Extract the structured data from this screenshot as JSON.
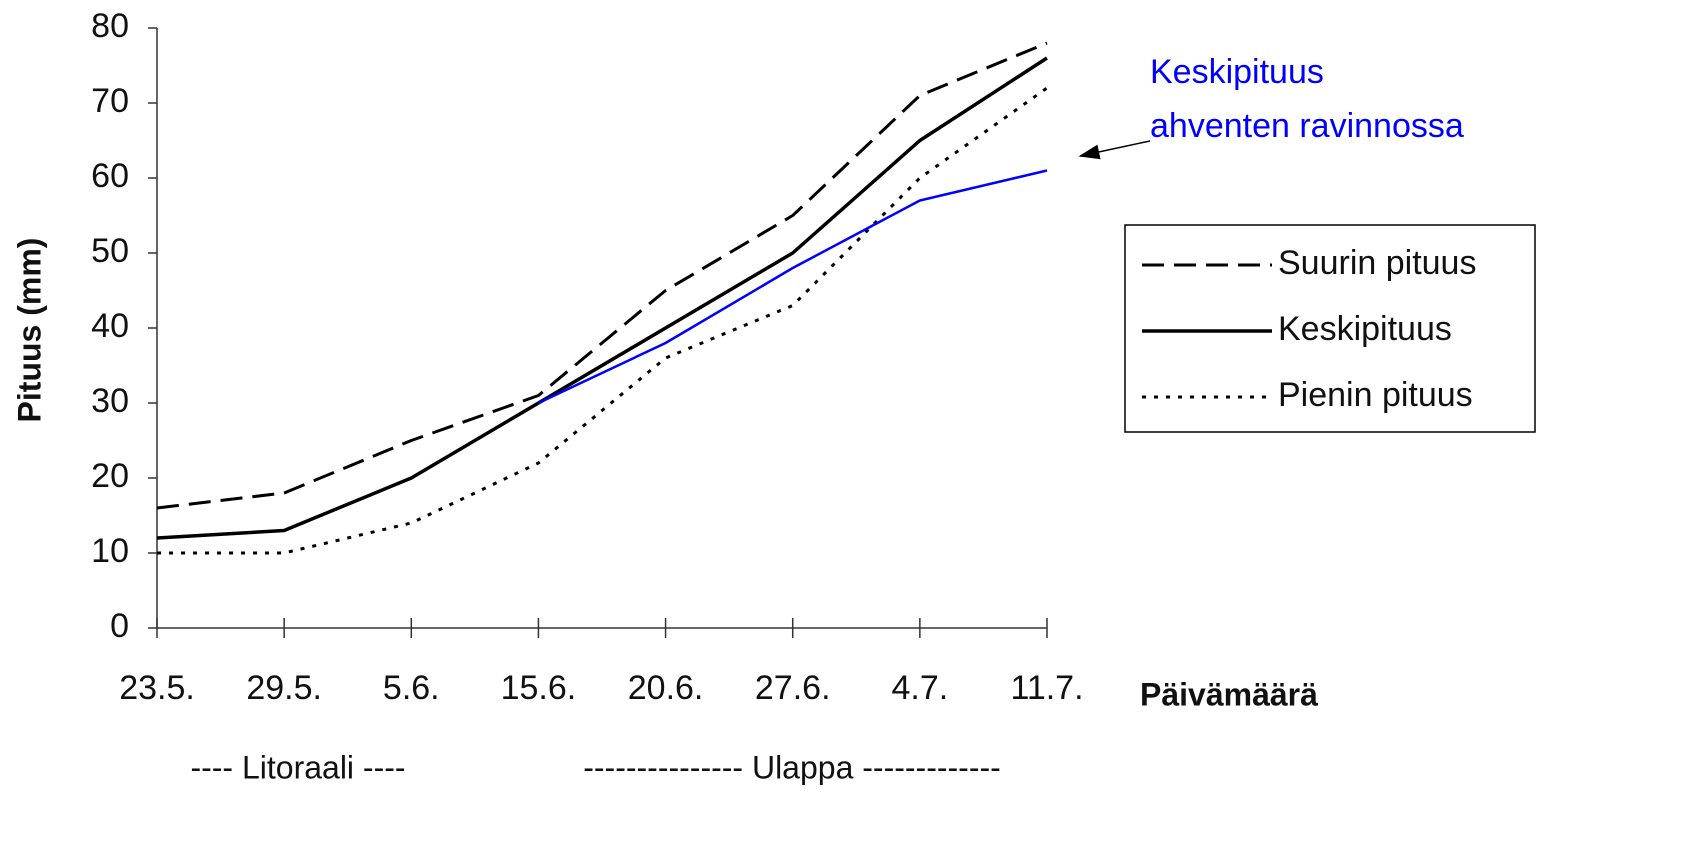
{
  "chart_data": {
    "type": "line",
    "ylabel": "Pituus (mm)",
    "xlabel": "Päivämäärä",
    "categories": [
      "23.5.",
      "29.5.",
      "5.6.",
      "15.6.",
      "20.6.",
      "27.6.",
      "4.7.",
      "11.7."
    ],
    "series": [
      {
        "name": "Suurin pituus",
        "color": "#000000",
        "style": "dashed",
        "values": [
          16,
          18,
          25,
          31,
          45,
          55,
          71,
          78
        ]
      },
      {
        "name": "Keskipituus",
        "color": "#000000",
        "style": "solid",
        "values": [
          12,
          13,
          20,
          30,
          40,
          50,
          65,
          76
        ]
      },
      {
        "name": "Pienin pituus",
        "color": "#000000",
        "style": "dotted",
        "values": [
          10,
          10,
          14,
          22,
          36,
          43,
          60,
          72
        ]
      },
      {
        "color": "#0000ff",
        "style": "solid",
        "values": [
          null,
          null,
          null,
          30,
          38,
          48,
          57,
          61
        ]
      }
    ],
    "ylim": [
      0,
      80
    ],
    "yticks": [
      0,
      10,
      20,
      30,
      40,
      50,
      60,
      70,
      80
    ],
    "grid": false,
    "legend": "right",
    "annotations": [
      "Keskipituus",
      "ahventen ravinnossa"
    ],
    "zones": [
      "---- Litoraali ----",
      "--------------- Ulappa -------------"
    ]
  }
}
